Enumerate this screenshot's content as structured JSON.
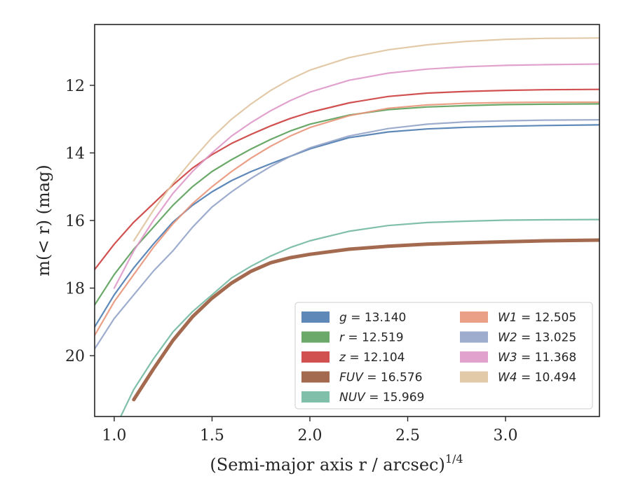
{
  "chart_data": {
    "type": "line",
    "xlabel": "(Semi-major axis r / arcsec)",
    "xlabel_sup": "1/4",
    "ylabel": "m(< r) (mag)",
    "xlim": [
      0.9,
      3.48
    ],
    "ylim": [
      21.8,
      10.2
    ],
    "y_inverted": true,
    "xticks": [
      1.0,
      1.5,
      2.0,
      2.5,
      3.0
    ],
    "xtick_labels": [
      "1.0",
      "1.5",
      "2.0",
      "2.5",
      "3.0"
    ],
    "yticks": [
      12,
      14,
      16,
      18,
      20
    ],
    "ytick_labels": [
      "12",
      "14",
      "16",
      "18",
      "20"
    ],
    "grid": false,
    "legend_position": "lower-right",
    "legend_columns": 2,
    "series": [
      {
        "name": "g = 13.140",
        "band": "g",
        "value": "13.140",
        "color": "#4c7bb0",
        "x": [
          0.9,
          1.0,
          1.1,
          1.2,
          1.3,
          1.4,
          1.5,
          1.6,
          1.7,
          1.8,
          1.9,
          2.0,
          2.2,
          2.4,
          2.6,
          2.8,
          3.0,
          3.2,
          3.48
        ],
        "y": [
          19.15,
          18.2,
          17.4,
          16.7,
          16.05,
          15.55,
          15.15,
          14.82,
          14.55,
          14.32,
          14.1,
          13.88,
          13.55,
          13.38,
          13.29,
          13.24,
          13.21,
          13.19,
          13.17
        ]
      },
      {
        "name": "r = 12.519",
        "band": "r",
        "value": "12.519",
        "color": "#5aa05a",
        "x": [
          0.9,
          1.0,
          1.1,
          1.2,
          1.3,
          1.4,
          1.5,
          1.6,
          1.7,
          1.8,
          1.9,
          2.0,
          2.2,
          2.4,
          2.6,
          2.8,
          3.0,
          3.2,
          3.48
        ],
        "y": [
          18.5,
          17.6,
          16.85,
          16.2,
          15.55,
          15.0,
          14.55,
          14.2,
          13.88,
          13.6,
          13.35,
          13.15,
          12.88,
          12.72,
          12.64,
          12.6,
          12.57,
          12.56,
          12.55
        ]
      },
      {
        "name": "z = 12.104",
        "band": "z",
        "value": "12.104",
        "color": "#cc3d3d",
        "x": [
          0.9,
          1.0,
          1.1,
          1.2,
          1.3,
          1.4,
          1.5,
          1.6,
          1.7,
          1.8,
          1.9,
          2.0,
          2.2,
          2.4,
          2.6,
          2.8,
          3.0,
          3.2,
          3.48
        ],
        "y": [
          17.45,
          16.7,
          16.05,
          15.5,
          14.95,
          14.45,
          14.05,
          13.72,
          13.45,
          13.2,
          12.98,
          12.8,
          12.52,
          12.33,
          12.23,
          12.18,
          12.15,
          12.13,
          12.12
        ]
      },
      {
        "name": "FUV = 16.576",
        "band": "FUV",
        "value": "16.576",
        "color": "#9a5a3c",
        "x": [
          1.1,
          1.2,
          1.3,
          1.4,
          1.5,
          1.6,
          1.7,
          1.8,
          1.9,
          2.0,
          2.2,
          2.4,
          2.6,
          2.8,
          3.0,
          3.2,
          3.48
        ],
        "y": [
          21.3,
          20.4,
          19.55,
          18.85,
          18.3,
          17.85,
          17.5,
          17.25,
          17.1,
          17.0,
          16.85,
          16.76,
          16.7,
          16.66,
          16.63,
          16.6,
          16.58
        ]
      },
      {
        "name": "NUV = 15.969",
        "band": "NUV",
        "value": "15.969",
        "color": "#72b8a0",
        "x": [
          0.9,
          1.0,
          1.1,
          1.2,
          1.3,
          1.4,
          1.5,
          1.6,
          1.7,
          1.8,
          1.9,
          2.0,
          2.2,
          2.4,
          2.6,
          2.8,
          3.0,
          3.2,
          3.48
        ],
        "y": [
          23.0,
          22.2,
          21.0,
          20.1,
          19.3,
          18.7,
          18.2,
          17.7,
          17.35,
          17.05,
          16.8,
          16.6,
          16.32,
          16.15,
          16.06,
          16.02,
          15.99,
          15.98,
          15.97
        ]
      },
      {
        "name": "W1 = 12.505",
        "band": "W1",
        "value": "12.505",
        "color": "#e8957a",
        "x": [
          0.9,
          1.0,
          1.1,
          1.2,
          1.3,
          1.4,
          1.5,
          1.6,
          1.7,
          1.8,
          1.9,
          2.0,
          2.2,
          2.4,
          2.6,
          2.8,
          3.0,
          3.2,
          3.48
        ],
        "y": [
          19.4,
          18.4,
          17.6,
          16.8,
          16.1,
          15.5,
          15.0,
          14.55,
          14.15,
          13.8,
          13.5,
          13.25,
          12.9,
          12.68,
          12.58,
          12.53,
          12.51,
          12.5,
          12.5
        ]
      },
      {
        "name": "W2 = 13.025",
        "band": "W2",
        "value": "13.025",
        "color": "#94a4c8",
        "x": [
          0.9,
          1.0,
          1.1,
          1.2,
          1.3,
          1.4,
          1.5,
          1.6,
          1.7,
          1.8,
          1.9,
          2.0,
          2.2,
          2.4,
          2.6,
          2.8,
          3.0,
          3.2,
          3.48
        ],
        "y": [
          19.8,
          18.9,
          18.2,
          17.5,
          16.9,
          16.2,
          15.6,
          15.15,
          14.75,
          14.4,
          14.1,
          13.85,
          13.5,
          13.28,
          13.15,
          13.08,
          13.05,
          13.03,
          13.02
        ]
      },
      {
        "name": "W3 = 11.368",
        "band": "W3",
        "value": "11.368",
        "color": "#de98c8",
        "x": [
          1.0,
          1.1,
          1.2,
          1.3,
          1.4,
          1.5,
          1.6,
          1.7,
          1.8,
          1.9,
          2.0,
          2.2,
          2.4,
          2.6,
          2.8,
          3.0,
          3.2,
          3.48
        ],
        "y": [
          18.0,
          16.9,
          16.0,
          15.2,
          14.55,
          14.0,
          13.5,
          13.1,
          12.75,
          12.45,
          12.2,
          11.85,
          11.64,
          11.52,
          11.45,
          11.41,
          11.39,
          11.37
        ]
      },
      {
        "name": "W4 = 10.494",
        "band": "W4",
        "value": "10.494",
        "color": "#dfc4a0",
        "x": [
          1.1,
          1.2,
          1.3,
          1.4,
          1.5,
          1.6,
          1.7,
          1.8,
          1.9,
          2.0,
          2.2,
          2.4,
          2.6,
          2.8,
          3.0,
          3.2,
          3.48
        ],
        "y": [
          16.6,
          15.7,
          14.9,
          14.2,
          13.55,
          13.0,
          12.55,
          12.15,
          11.82,
          11.55,
          11.18,
          10.95,
          10.8,
          10.7,
          10.64,
          10.61,
          10.6
        ]
      }
    ]
  }
}
